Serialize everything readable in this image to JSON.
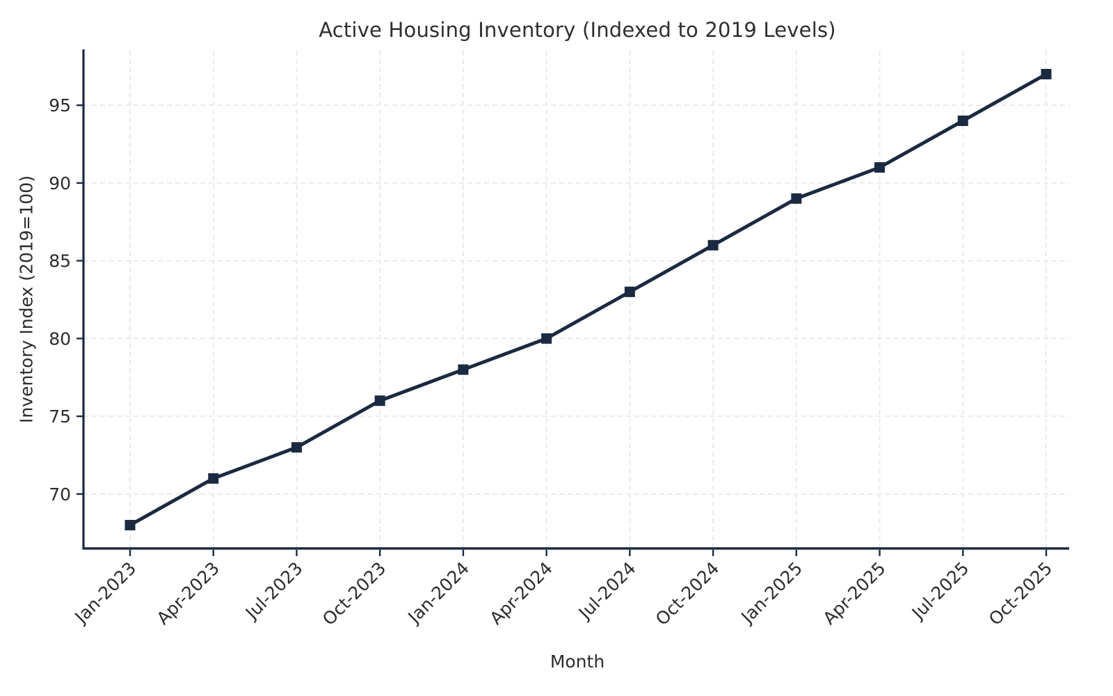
{
  "chart_data": {
    "type": "line",
    "title": "Active Housing Inventory (Indexed to 2019 Levels)",
    "xlabel": "Month",
    "ylabel": "Inventory Index (2019=100)",
    "categories": [
      "Jan-2023",
      "Apr-2023",
      "Jul-2023",
      "Oct-2023",
      "Jan-2024",
      "Apr-2024",
      "Jul-2024",
      "Oct-2024",
      "Jan-2025",
      "Apr-2025",
      "Jul-2025",
      "Oct-2025"
    ],
    "series": [
      {
        "name": "Inventory Index",
        "values": [
          68,
          71,
          73,
          76,
          78,
          80,
          83,
          86,
          89,
          91,
          94,
          97
        ]
      }
    ],
    "yticks": [
      70,
      75,
      80,
      85,
      90,
      95
    ],
    "ylim": [
      66.5,
      98.5
    ],
    "grid": true,
    "grid_style": "dashed",
    "legend": "none",
    "marker": "square",
    "line_color": "#1b2a40",
    "marker_color": "#1b2a40",
    "axis_color": "#1b2a40",
    "grid_color": "#e6e6e6",
    "text_color": "#2c2c2c",
    "background": "#ffffff"
  }
}
